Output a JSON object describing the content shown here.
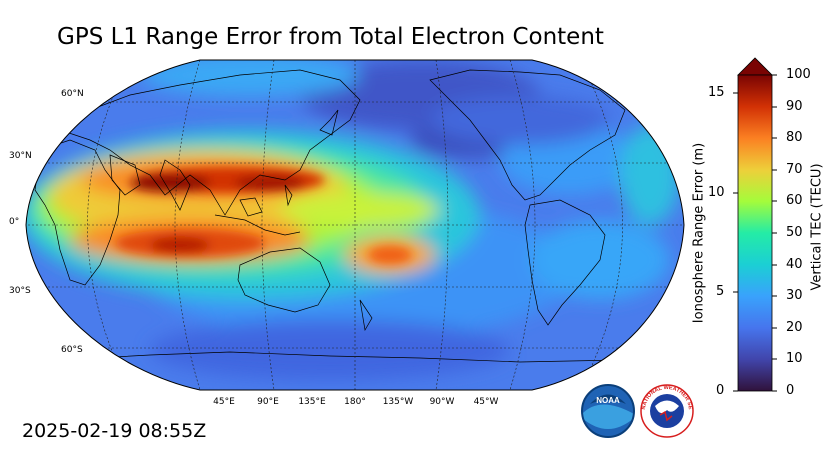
{
  "title": "GPS L1 Range Error from Total Electron Content",
  "timestamp": "2025-02-19 08:55Z",
  "map": {
    "projection": "Robinson",
    "central_longitude": "180°",
    "lat_labels": [
      "60°N",
      "30°N",
      "0°",
      "30°S",
      "60°S"
    ],
    "lon_labels": [
      "45°E",
      "90°E",
      "135°E",
      "180°",
      "135°W",
      "90°W",
      "45°W"
    ],
    "gridlines": "dotted"
  },
  "colorbar": {
    "left_title": "Ionosphere Range Error (m)",
    "right_title": "Vertical TEC (TECU)",
    "left_ticks": [
      "15",
      "10",
      "5",
      "0"
    ],
    "right_ticks": [
      "100",
      "90",
      "80",
      "70",
      "60",
      "50",
      "40",
      "30",
      "20",
      "10",
      "0"
    ],
    "colormap": "turbo",
    "extend": "max"
  },
  "logos": {
    "noaa_text": "NOAA",
    "nws_text": "NATIONAL WEATHER SERVICE"
  },
  "colors": {
    "background": "#ffffff",
    "low": "#30123b",
    "high": "#7a0403"
  }
}
